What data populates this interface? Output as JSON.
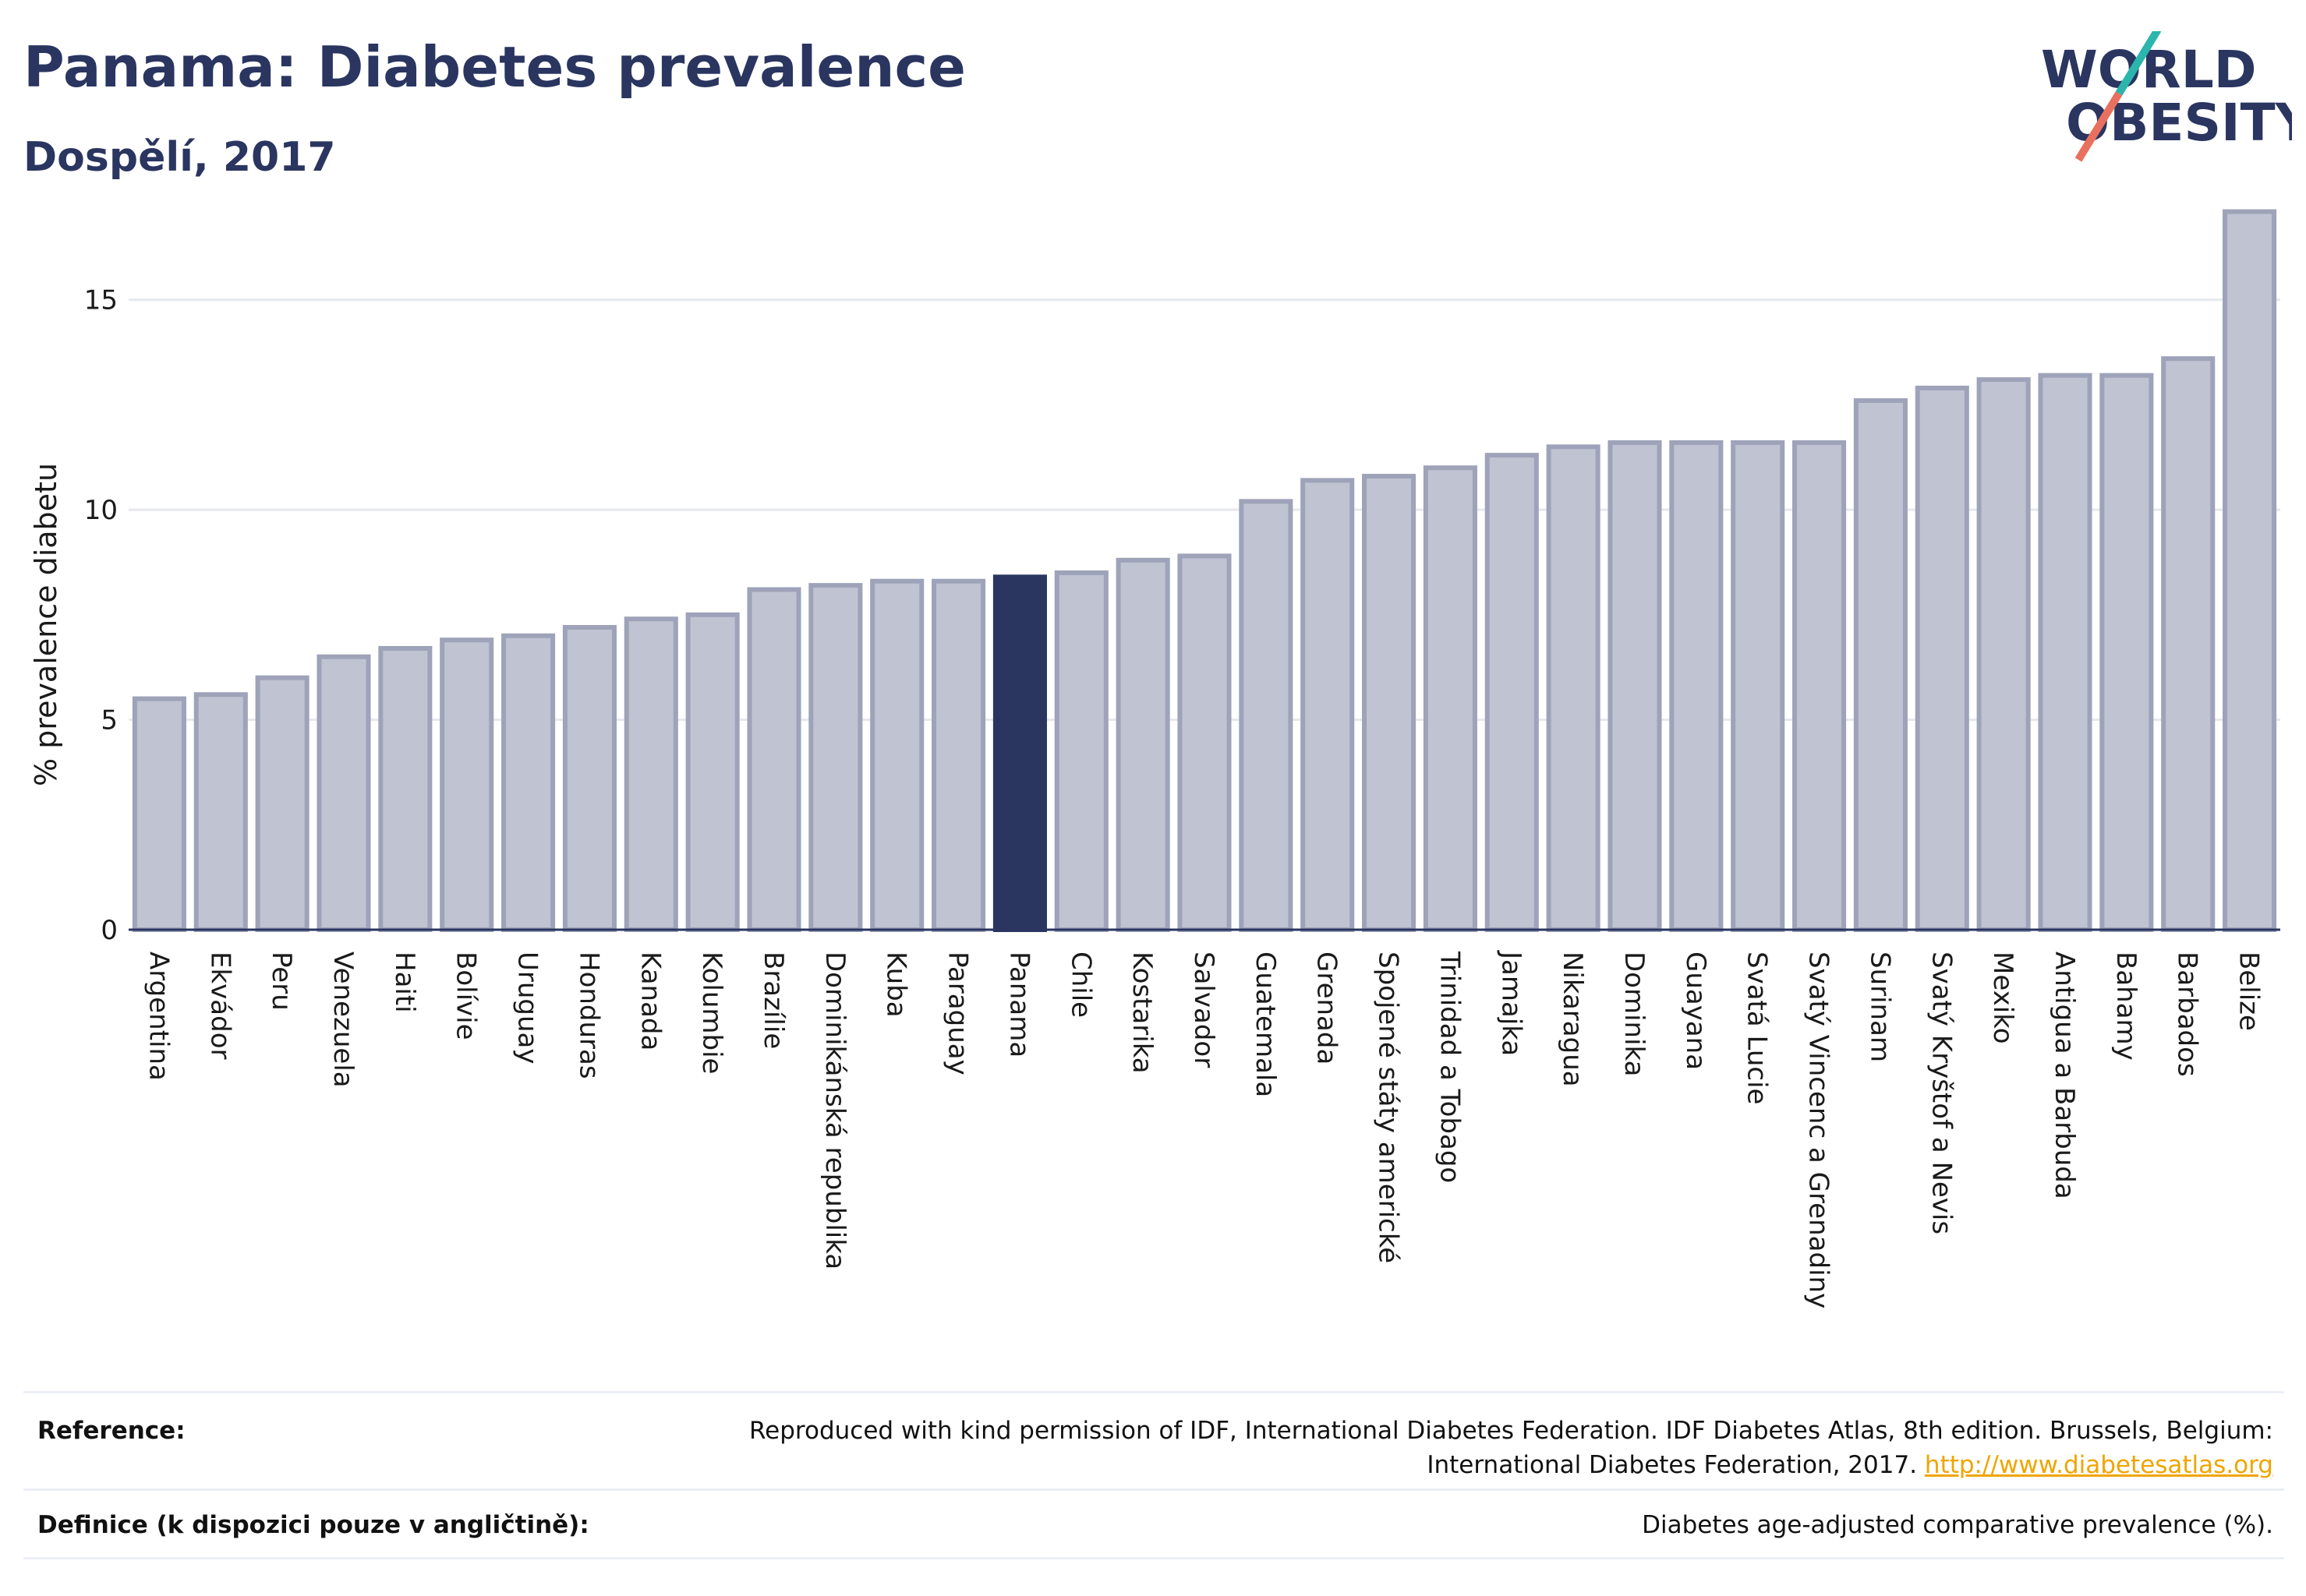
{
  "header": {
    "title": "Panama: Diabetes prevalence",
    "subtitle": "Dospělí, 2017"
  },
  "logo": {
    "line1": "WORLD",
    "line2": "OBESITY"
  },
  "colors": {
    "bar": "#bfc3d2",
    "bar_stroke": "#9ea3b9",
    "highlight": "#2a3560",
    "axis": "#2a3560",
    "grid": "#e6e8ef",
    "logo_teal": "#2bb5ad",
    "logo_coral": "#e8705e"
  },
  "chart_data": {
    "type": "bar",
    "title": "Panama: Diabetes prevalence",
    "subtitle": "Dospělí, 2017",
    "ylabel": "% prevalence diabetu",
    "xlabel": "",
    "ylim": [
      0,
      17.5
    ],
    "yticks": [
      0,
      5,
      10,
      15
    ],
    "grid": true,
    "highlight": "Panama",
    "categories": [
      "Argentina",
      "Ekvádor",
      "Peru",
      "Venezuela",
      "Haiti",
      "Bolívie",
      "Uruguay",
      "Honduras",
      "Kanada",
      "Kolumbie",
      "Brazílie",
      "Dominikánská republika",
      "Kuba",
      "Paraguay",
      "Panama",
      "Chile",
      "Kostarika",
      "Salvador",
      "Guatemala",
      "Grenada",
      "Spojené státy americké",
      "Trinidad a Tobago",
      "Jamajka",
      "Nikaragua",
      "Dominika",
      "Guayana",
      "Svatá Lucie",
      "Svatý Vincenc a Grenadiny",
      "Surinam",
      "Svatý Kryštof a Nevis",
      "Mexiko",
      "Antigua a Barbuda",
      "Bahamy",
      "Barbados",
      "Belize"
    ],
    "values": [
      5.5,
      5.6,
      6.0,
      6.5,
      6.7,
      6.9,
      7.0,
      7.2,
      7.4,
      7.5,
      8.1,
      8.2,
      8.3,
      8.3,
      8.4,
      8.5,
      8.8,
      8.9,
      10.2,
      10.7,
      10.8,
      11.0,
      11.3,
      11.5,
      11.6,
      11.6,
      11.6,
      11.6,
      12.6,
      12.9,
      13.1,
      13.2,
      13.2,
      13.6,
      17.1
    ]
  },
  "footer": {
    "reference_label": "Reference:",
    "reference_text_line1": "Reproduced with kind permission of IDF, International Diabetes Federation. IDF Diabetes Atlas, 8th edition. Brussels, Belgium:",
    "reference_text_line2": "International Diabetes Federation, 2017.",
    "reference_link": "http://www.diabetesatlas.org",
    "definition_label": "Definice (k dispozici pouze v angličtině):",
    "definition_text": "Diabetes age-adjusted comparative prevalence (%)."
  }
}
